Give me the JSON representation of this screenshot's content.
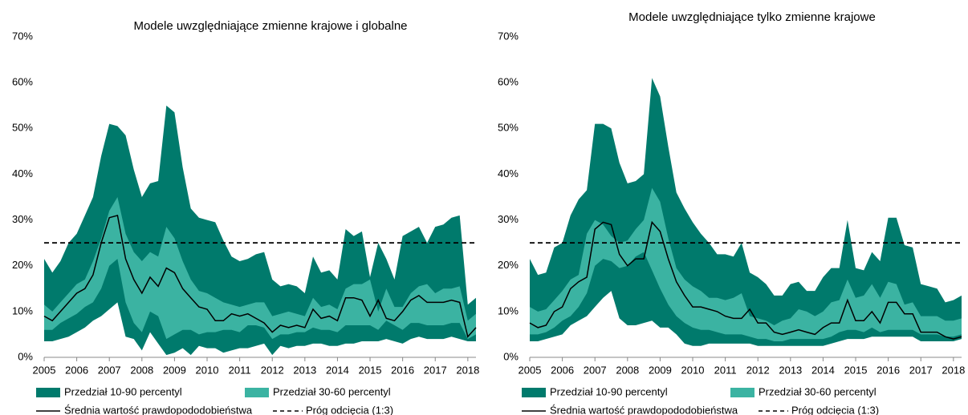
{
  "chart_data": [
    {
      "type": "area",
      "title": "Modele uwzględniające zmienne krajowe i globalne",
      "x": [
        2005,
        2005.25,
        2005.5,
        2005.75,
        2006,
        2006.25,
        2006.5,
        2006.75,
        2007,
        2007.25,
        2007.5,
        2007.75,
        2008,
        2008.25,
        2008.5,
        2008.75,
        2009,
        2009.25,
        2009.5,
        2009.75,
        2010,
        2010.25,
        2010.5,
        2010.75,
        2011,
        2011.25,
        2011.5,
        2011.75,
        2012,
        2012.25,
        2012.5,
        2012.75,
        2013,
        2013.25,
        2013.5,
        2013.75,
        2014,
        2014.25,
        2014.5,
        2014.75,
        2015,
        2015.25,
        2015.5,
        2015.75,
        2016,
        2016.25,
        2016.5,
        2016.75,
        2017,
        2017.25,
        2017.5,
        2017.75,
        2018,
        2018.25
      ],
      "xlim": [
        2005,
        2018.25
      ],
      "xticks": [
        2005,
        2006,
        2007,
        2008,
        2009,
        2010,
        2011,
        2012,
        2013,
        2014,
        2015,
        2016,
        2017,
        2018
      ],
      "ylim": [
        0,
        70
      ],
      "yticks": [
        {
          "value": 0,
          "label": "0%"
        },
        {
          "value": 10,
          "label": "10%"
        },
        {
          "value": 20,
          "label": "20%"
        },
        {
          "value": 30,
          "label": "30%"
        },
        {
          "value": 40,
          "label": "40%"
        },
        {
          "value": 50,
          "label": "50%"
        },
        {
          "value": 60,
          "label": "60%"
        },
        {
          "value": 70,
          "label": "70%"
        }
      ],
      "series": [
        {
          "name": "Przedział 10-90 percentyl",
          "kind": "band",
          "color": "#007a6c",
          "values": [
            21.5,
            18.5,
            21,
            25,
            27,
            31,
            35,
            44,
            51,
            50.5,
            48.5,
            41,
            35,
            38,
            38.5,
            55,
            53.5,
            41.5,
            32.5,
            30.5,
            30,
            29.5,
            25.5,
            22,
            21,
            21.5,
            22.5,
            23,
            17,
            15.5,
            16,
            15.5,
            14,
            22,
            18.5,
            19,
            17,
            28,
            26.5,
            27.5,
            17.5,
            25,
            21.5,
            17,
            26.5,
            27.5,
            28.5,
            25,
            28.5,
            29,
            30.5,
            31,
            11.5,
            13
          ],
          "lower": [
            3.5,
            3.5,
            4,
            4.5,
            5.5,
            6.5,
            8,
            9,
            10.5,
            12,
            4.5,
            4,
            1.5,
            5.5,
            3,
            0.5,
            1,
            2,
            0.5,
            2.5,
            2,
            2,
            1,
            1.5,
            2,
            2,
            2.5,
            3,
            0.5,
            2.5,
            2,
            2.5,
            2.5,
            3,
            3,
            2.5,
            2.5,
            3,
            3,
            3.5,
            3.5,
            3.5,
            4,
            3.5,
            3,
            4,
            4.5,
            4,
            4,
            4,
            4.5,
            4,
            3.5,
            3.5
          ]
        },
        {
          "name": "Przedział 30-60 percentyl",
          "kind": "band",
          "color": "#3bb3a2",
          "values": [
            11.5,
            10,
            12,
            14,
            16,
            17,
            21,
            26,
            32,
            35,
            27,
            23,
            21,
            23,
            22,
            28.5,
            26,
            21,
            17,
            14.5,
            14,
            13,
            12,
            11.5,
            11,
            11.5,
            12,
            12,
            9,
            9.5,
            10,
            9.5,
            9,
            13,
            11,
            11.5,
            10.5,
            15,
            16,
            16,
            17,
            10,
            15,
            11,
            11,
            14,
            15.5,
            16,
            14,
            15,
            15,
            15.5,
            8,
            9.5
          ],
          "lower": [
            6,
            6,
            7.5,
            8.5,
            9.5,
            11,
            12,
            15,
            20,
            21.5,
            12,
            7.5,
            5.5,
            10,
            9,
            4,
            5,
            6,
            6,
            5,
            5.5,
            5.5,
            6,
            6,
            5.5,
            7,
            7,
            6.5,
            4,
            5,
            5,
            5.5,
            5.5,
            6.5,
            6,
            6,
            5.5,
            7,
            7,
            7,
            7,
            6,
            8,
            7,
            6,
            7.5,
            7.5,
            7,
            7,
            7,
            7.5,
            7.5,
            4,
            5
          ]
        },
        {
          "name": "Średnia wartość prawdopododobieństwa",
          "kind": "line",
          "color": "#000000",
          "values": [
            9,
            8,
            10,
            12,
            14,
            15,
            18,
            25,
            30.5,
            31,
            21.5,
            17,
            14,
            17.5,
            15.5,
            19.5,
            18.5,
            15,
            13,
            11,
            10.5,
            8,
            8,
            9.5,
            9,
            9.5,
            8.5,
            7.5,
            5.5,
            7,
            6.5,
            7,
            6.5,
            10.5,
            8.5,
            9,
            8,
            13,
            13,
            12.5,
            9,
            12.5,
            8.5,
            8,
            10,
            12.5,
            13.5,
            12,
            12,
            12,
            12.5,
            12,
            4.5,
            6.5
          ]
        }
      ],
      "threshold": {
        "name": "Próg odcięcia (1:3)",
        "value": 25,
        "color": "#000000"
      }
    },
    {
      "type": "area",
      "title": "Modele uwzględniające tylko zmienne krajowe",
      "x": [
        2005,
        2005.25,
        2005.5,
        2005.75,
        2006,
        2006.25,
        2006.5,
        2006.75,
        2007,
        2007.25,
        2007.5,
        2007.75,
        2008,
        2008.25,
        2008.5,
        2008.75,
        2009,
        2009.25,
        2009.5,
        2009.75,
        2010,
        2010.25,
        2010.5,
        2010.75,
        2011,
        2011.25,
        2011.5,
        2011.75,
        2012,
        2012.25,
        2012.5,
        2012.75,
        2013,
        2013.25,
        2013.5,
        2013.75,
        2014,
        2014.25,
        2014.5,
        2014.75,
        2015,
        2015.25,
        2015.5,
        2015.75,
        2016,
        2016.25,
        2016.5,
        2016.75,
        2017,
        2017.25,
        2017.5,
        2017.75,
        2018,
        2018.25
      ],
      "xlim": [
        2005,
        2018.25
      ],
      "xticks": [
        2005,
        2006,
        2007,
        2008,
        2009,
        2010,
        2011,
        2012,
        2013,
        2014,
        2015,
        2016,
        2017,
        2018
      ],
      "ylim": [
        0,
        70
      ],
      "yticks": [
        {
          "value": 0,
          "label": "0%"
        },
        {
          "value": 10,
          "label": "10%"
        },
        {
          "value": 20,
          "label": "20%"
        },
        {
          "value": 30,
          "label": "30%"
        },
        {
          "value": 40,
          "label": "40%"
        },
        {
          "value": 50,
          "label": "50%"
        },
        {
          "value": 60,
          "label": "60%"
        },
        {
          "value": 70,
          "label": "70%"
        }
      ],
      "series": [
        {
          "name": "Przedział 10-90 percentyl",
          "kind": "band",
          "color": "#007a6c",
          "values": [
            21.5,
            18,
            18.5,
            24,
            25,
            31,
            34.5,
            36.5,
            51,
            51,
            50,
            42.5,
            38,
            38.5,
            40,
            61,
            57,
            46,
            36,
            32.5,
            29.5,
            27,
            25,
            22.5,
            22.5,
            22,
            25,
            18.5,
            17.5,
            16,
            13.5,
            13.5,
            16,
            16.5,
            14.5,
            14.5,
            17.5,
            19.5,
            19.5,
            30,
            19.5,
            19,
            23,
            21,
            30.5,
            30.5,
            24.5,
            24,
            16,
            15.5,
            15,
            12,
            12.5,
            13.5
          ],
          "lower": [
            3.5,
            3.5,
            4,
            4.5,
            5,
            7,
            8,
            9,
            11,
            13,
            14.5,
            8.5,
            7,
            7,
            7.5,
            8,
            6.5,
            6.5,
            5,
            3,
            2.5,
            2.5,
            3,
            3,
            3,
            3,
            3,
            3,
            2.5,
            2.5,
            2.5,
            2.5,
            2.5,
            2.5,
            2.5,
            2.5,
            2.5,
            3,
            3.5,
            4,
            4,
            4,
            4.5,
            4.5,
            4.5,
            4.5,
            4.5,
            4.5,
            3.5,
            3.5,
            3.5,
            3.5,
            3.5,
            4
          ]
        },
        {
          "name": "Przedział 30-60 percentyl",
          "kind": "band",
          "color": "#3bb3a2",
          "values": [
            11,
            10,
            10.5,
            12.5,
            14.5,
            17,
            18,
            27,
            30,
            29,
            26.5,
            25,
            25.5,
            28,
            30,
            37,
            34,
            26,
            19.5,
            17,
            15.5,
            14.5,
            13,
            13,
            12.5,
            13,
            14,
            9,
            8.5,
            8,
            7,
            8,
            8.5,
            10.5,
            10,
            9,
            10,
            12,
            12.5,
            17,
            13,
            13.5,
            16,
            13,
            16.5,
            16,
            11.5,
            12,
            9,
            9,
            9,
            8,
            8,
            8.5
          ],
          "lower": [
            5,
            5,
            5.5,
            6.5,
            8,
            9,
            11,
            14,
            20,
            21.5,
            21,
            19.5,
            20,
            22,
            23,
            19,
            15,
            11.5,
            9,
            7.5,
            6.5,
            6,
            6,
            5.5,
            5,
            5,
            5,
            4.5,
            4,
            4,
            3.5,
            3.5,
            4,
            4,
            4,
            4,
            4,
            4.5,
            5.5,
            6,
            6,
            5.5,
            6.5,
            5.5,
            6,
            6,
            6,
            6,
            5,
            5,
            5,
            4.5,
            4.5,
            5
          ]
        },
        {
          "name": "Średnia wartość prawdopododobieństwa",
          "kind": "line",
          "color": "#000000",
          "values": [
            7.5,
            6.5,
            7,
            10,
            11,
            15,
            16.5,
            17.5,
            28,
            29.5,
            29,
            22.5,
            20,
            21.5,
            21.5,
            29.5,
            27.5,
            21.5,
            16.5,
            13.5,
            11,
            11,
            10.5,
            10,
            9,
            8.5,
            8.5,
            10.5,
            7.5,
            7.5,
            5.5,
            5,
            5.5,
            6,
            5.5,
            5,
            6.5,
            7.5,
            7.5,
            12.5,
            8,
            8,
            10,
            7.5,
            12,
            12,
            9.5,
            9.5,
            5.5,
            5.5,
            5.5,
            4.5,
            4,
            4.5
          ]
        }
      ],
      "threshold": {
        "name": "Próg odcięcia (1:3)",
        "value": 25,
        "color": "#000000"
      }
    }
  ]
}
